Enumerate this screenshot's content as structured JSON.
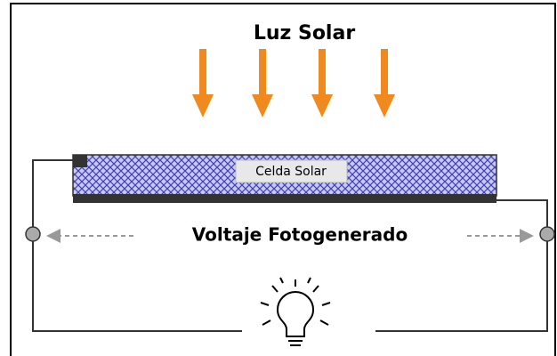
{
  "labels": {
    "sunlight": "Luz Solar",
    "cell": "Celda Solar",
    "voltage": "Voltaje Fotogenerado"
  }
}
